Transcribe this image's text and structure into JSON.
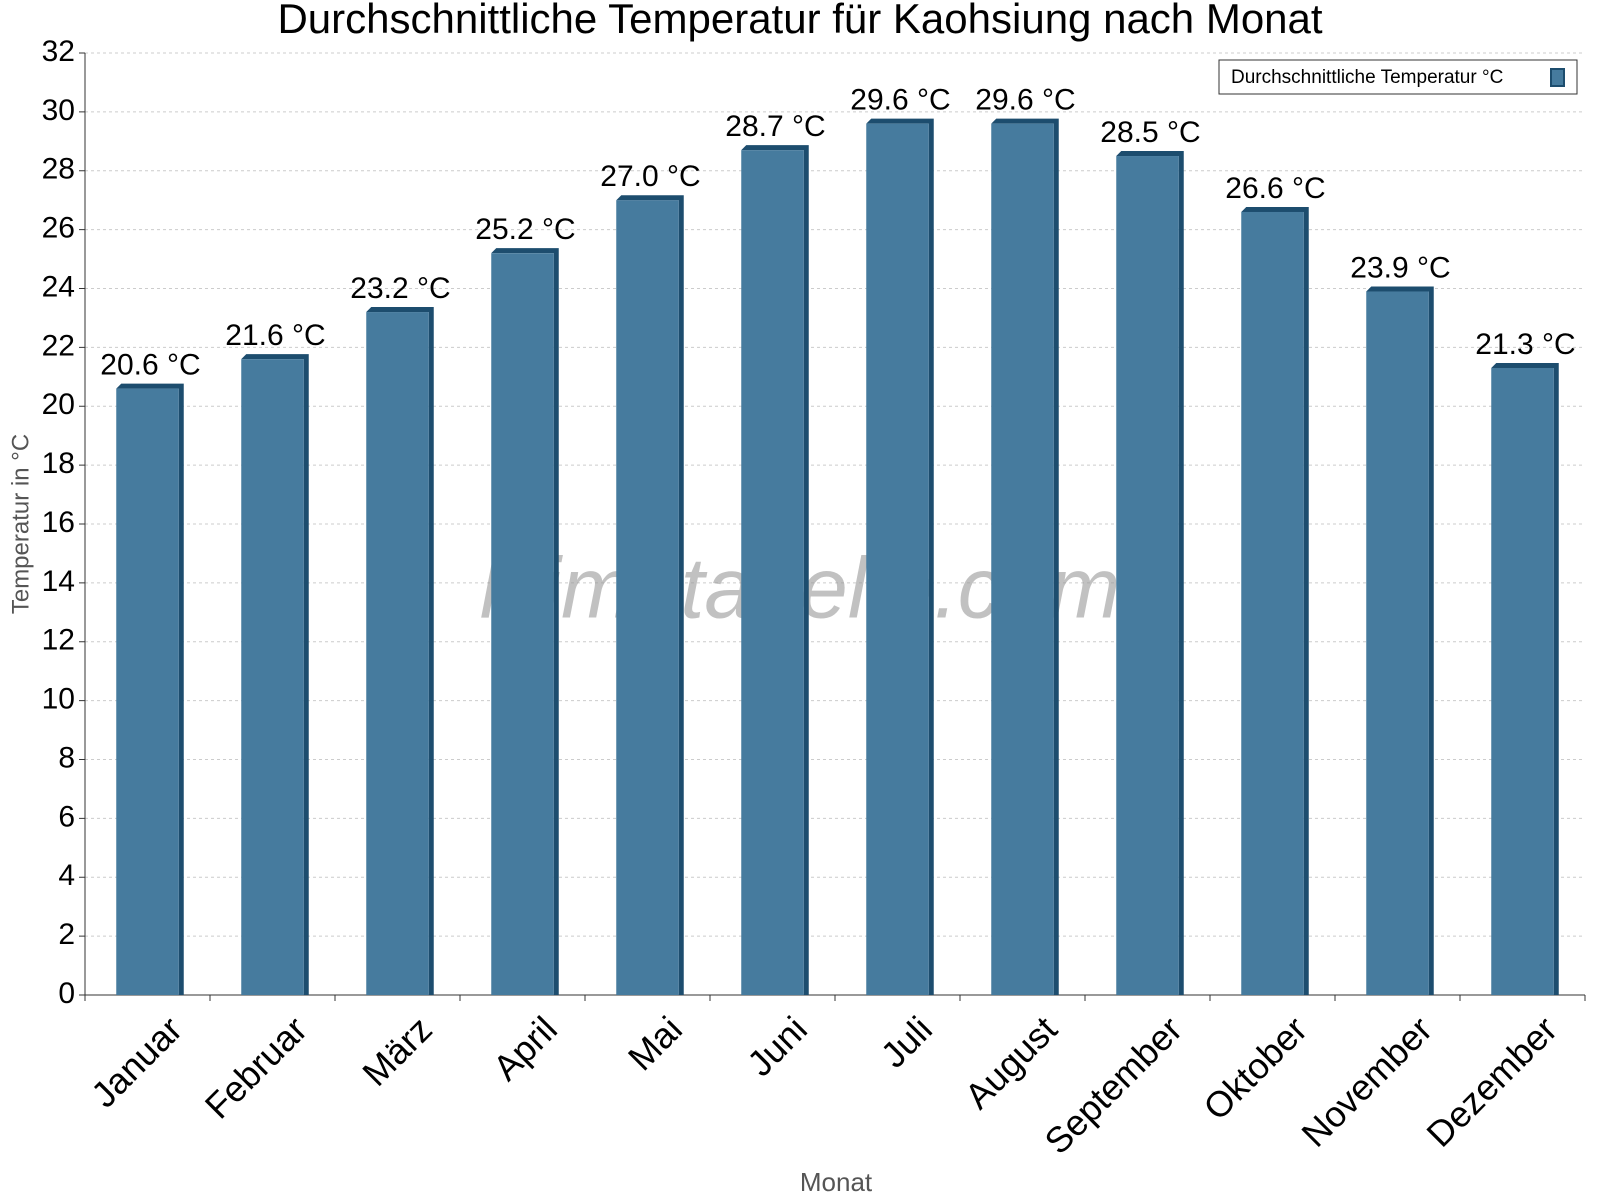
{
  "chart_data": {
    "type": "bar3d",
    "title": "Durchschnittliche Temperatur für Kaohsiung nach Monat",
    "x_label": "Monat",
    "y_label": "Temperatur in °C",
    "watermark": "klimatabelle.com",
    "categories": [
      "Januar",
      "Februar",
      "März",
      "April",
      "Mai",
      "Juni",
      "Juli",
      "August",
      "September",
      "Oktober",
      "November",
      "Dezember"
    ],
    "series": [
      {
        "name": "Durchschnittliche Temperatur °C",
        "color": "#467b9e",
        "side_color": "#1d4d6e",
        "values": [
          20.6,
          21.6,
          23.2,
          25.2,
          27.0,
          28.7,
          29.6,
          29.6,
          28.5,
          26.6,
          23.9,
          21.3
        ],
        "value_labels": [
          "20.6 °C",
          "21.6 °C",
          "23.2 °C",
          "25.2 °C",
          "27.0 °C",
          "28.7 °C",
          "29.6 °C",
          "29.6 °C",
          "28.5 °C",
          "26.6 °C",
          "23.9 °C",
          "21.3 °C"
        ]
      }
    ],
    "ylim": [
      0,
      32
    ],
    "yticks": [
      0,
      2,
      4,
      6,
      8,
      10,
      12,
      14,
      16,
      18,
      20,
      22,
      24,
      26,
      28,
      30,
      32
    ],
    "grid": true,
    "legend": "top-right"
  }
}
